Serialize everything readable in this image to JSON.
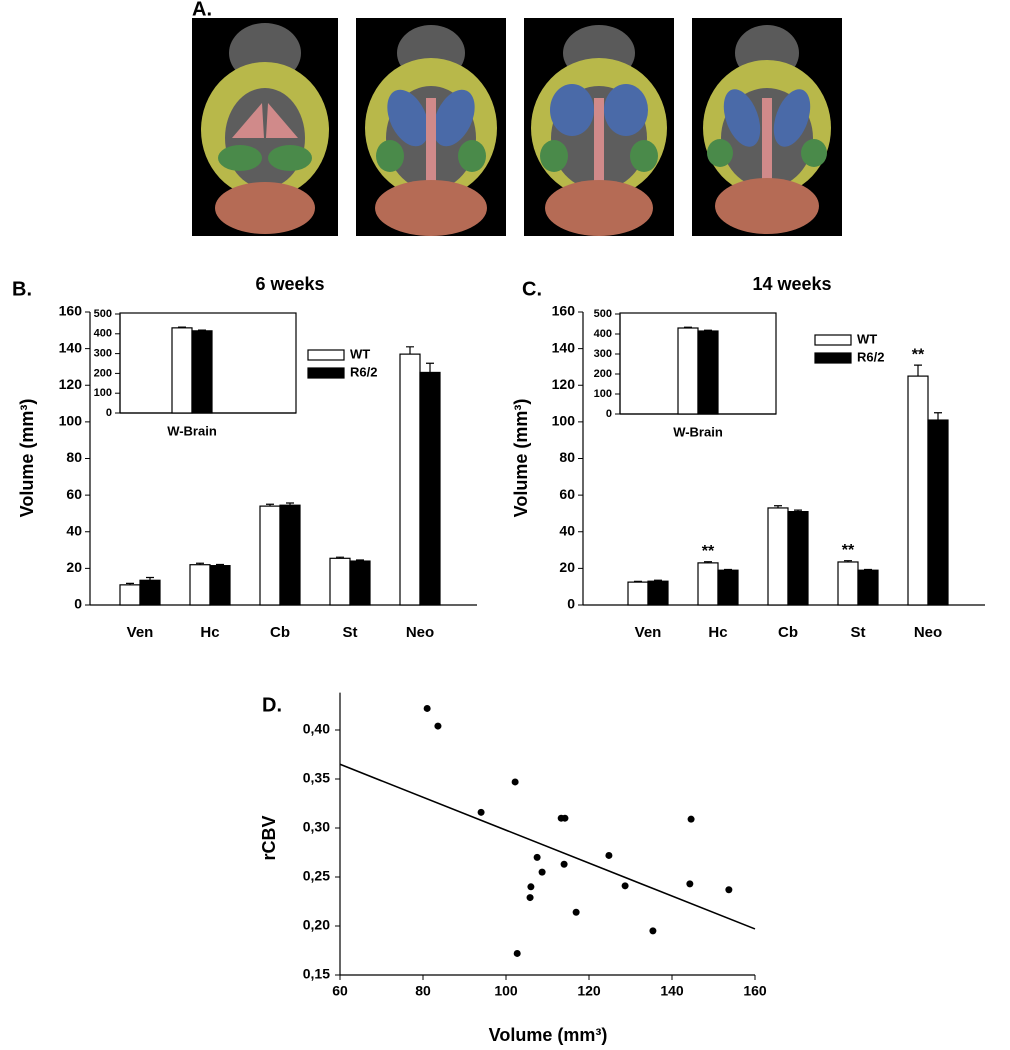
{
  "panel_a": {
    "label": "A."
  },
  "chart_data": [
    {
      "type": "bar",
      "panel_label": "B.",
      "title": "6 weeks",
      "y_label": "Volume (mm³)",
      "categories": [
        "Ven",
        "Hc",
        "Cb",
        "St",
        "Neo"
      ],
      "series": [
        {
          "name": "WT",
          "color": "#ffffff",
          "values": [
            11,
            22,
            54,
            25.5,
            137
          ],
          "errors": [
            0.8,
            0.8,
            1,
            0.6,
            4
          ]
        },
        {
          "name": "R6/2",
          "color": "#000000",
          "values": [
            13.5,
            21.5,
            54.5,
            24,
            127
          ],
          "errors": [
            1.5,
            0.6,
            1.2,
            0.6,
            5
          ]
        }
      ],
      "ylim": [
        0,
        160
      ],
      "yticks": [
        0,
        20,
        40,
        60,
        80,
        100,
        120,
        140,
        160
      ],
      "inset": {
        "type": "bar",
        "categories": [
          "W-Brain"
        ],
        "series": [
          {
            "color": "#ffffff",
            "values": [
              430
            ],
            "errors": [
              4
            ]
          },
          {
            "color": "#000000",
            "values": [
              415
            ],
            "errors": [
              4
            ]
          }
        ],
        "ylim": [
          0,
          500
        ],
        "yticks": [
          0,
          100,
          200,
          300,
          400,
          500
        ]
      }
    },
    {
      "type": "bar",
      "panel_label": "C.",
      "title": "14 weeks",
      "y_label": "Volume (mm³)",
      "categories": [
        "Ven",
        "Hc",
        "Cb",
        "St",
        "Neo"
      ],
      "series": [
        {
          "name": "WT",
          "color": "#ffffff",
          "values": [
            12.5,
            23,
            53,
            23.5,
            125
          ],
          "errors": [
            0.4,
            0.6,
            1.2,
            0.7,
            6
          ],
          "value_labels": [
            null,
            "**",
            null,
            "**",
            "**"
          ]
        },
        {
          "name": "R6/2",
          "color": "#000000",
          "values": [
            13,
            19,
            51,
            19,
            101
          ],
          "errors": [
            0.5,
            0.4,
            0.8,
            0.4,
            4
          ]
        }
      ],
      "ylim": [
        0,
        160
      ],
      "yticks": [
        0,
        20,
        40,
        60,
        80,
        100,
        120,
        140,
        160
      ],
      "inset": {
        "type": "bar",
        "categories": [
          "W-Brain"
        ],
        "series": [
          {
            "color": "#ffffff",
            "values": [
              430
            ],
            "errors": [
              4
            ]
          },
          {
            "color": "#000000",
            "values": [
              415
            ],
            "errors": [
              4
            ]
          }
        ],
        "ylim": [
          0,
          500
        ],
        "yticks": [
          0,
          100,
          200,
          300,
          400,
          500
        ]
      }
    },
    {
      "type": "scatter",
      "panel_label": "D.",
      "x_label": "Volume (mm³)",
      "y_label": "rCBV",
      "color": "#000000",
      "x": [
        81,
        83.6,
        94,
        102.2,
        113.3,
        114.2,
        107.5,
        108.7,
        106,
        105.8,
        114,
        124.8,
        128.7,
        116.9,
        102.7,
        135.4,
        144.6,
        144.3,
        153.7
      ],
      "y": [
        0.422,
        0.404,
        0.316,
        0.347,
        0.31,
        0.31,
        0.27,
        0.255,
        0.24,
        0.229,
        0.263,
        0.272,
        0.241,
        0.214,
        0.172,
        0.195,
        0.309,
        0.243,
        0.237
      ],
      "fit": {
        "x": [
          60,
          160
        ],
        "y": [
          0.365,
          0.197
        ]
      },
      "xlim": [
        60,
        160
      ],
      "xticks": [
        60,
        80,
        100,
        120,
        140,
        160
      ],
      "ylim": [
        0.15,
        0.43
      ],
      "yticks": [
        {
          "value": 0.15,
          "label": "0,15"
        },
        {
          "value": 0.2,
          "label": "0,20"
        },
        {
          "value": 0.25,
          "label": "0,25"
        },
        {
          "value": 0.3,
          "label": "0,30"
        },
        {
          "value": 0.35,
          "label": "0,35"
        },
        {
          "value": 0.4,
          "label": "0,40"
        }
      ]
    }
  ]
}
